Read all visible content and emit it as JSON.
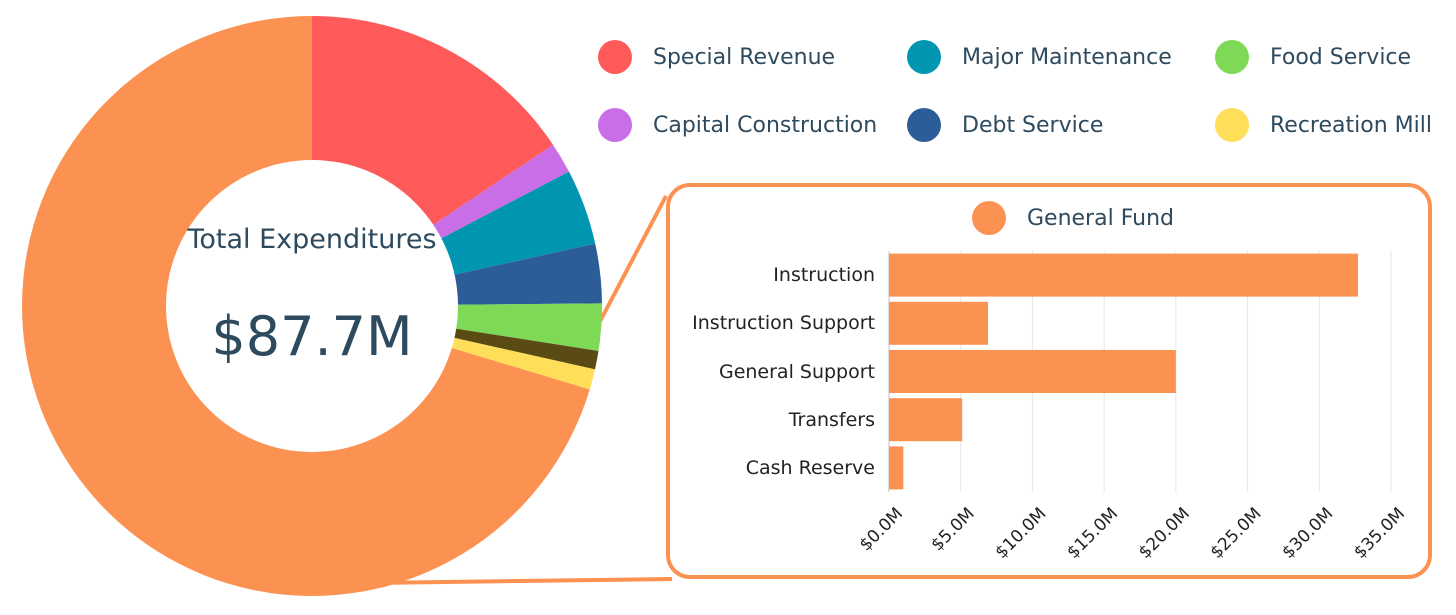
{
  "colors": {
    "general_fund": "#fb9251",
    "special_revenue": "#ff5a5a",
    "capital_construction": "#c96ee6",
    "major_maintenance": "#0096b2",
    "debt_service": "#2d5d98",
    "food_service": "#7ed957",
    "other_dark": "#5a4a14",
    "recreation_mill": "#ffde59",
    "text": "#2d4a5f"
  },
  "legend": [
    {
      "label": "Special Revenue",
      "color": "#ff5a5a"
    },
    {
      "label": "Major Maintenance",
      "color": "#0096b2"
    },
    {
      "label": "Food Service",
      "color": "#7ed957"
    },
    {
      "label": "Capital Construction",
      "color": "#c96ee6"
    },
    {
      "label": "Debt Service",
      "color": "#2d5d98"
    },
    {
      "label": "Recreation Mill",
      "color": "#ffde59"
    }
  ],
  "center": {
    "title": "Total Expenditures",
    "total": "$87.7M"
  },
  "inset": {
    "legend_label": "General Fund",
    "legend_color": "#fb9251"
  },
  "chart_data": [
    {
      "type": "pie",
      "style": "donut",
      "center_text": "Total Expenditures $87.7M",
      "slices": [
        {
          "label": "Special Revenue",
          "value": 13.7,
          "color": "#ff5a5a"
        },
        {
          "label": "Capital Construction",
          "value": 1.5,
          "color": "#c96ee6"
        },
        {
          "label": "Major Maintenance",
          "value": 3.7,
          "color": "#0096b2"
        },
        {
          "label": "Debt Service",
          "value": 2.9,
          "color": "#2d5d98"
        },
        {
          "label": "Food Service",
          "value": 2.3,
          "color": "#7ed957"
        },
        {
          "label": "",
          "value": 0.9,
          "color": "#5a4a14"
        },
        {
          "label": "Recreation Mill",
          "value": 1.0,
          "color": "#ffde59"
        },
        {
          "label": "General Fund",
          "value": 61.7,
          "color": "#fb9251"
        }
      ]
    },
    {
      "type": "bar",
      "orientation": "horizontal",
      "series": [
        {
          "name": "General Fund",
          "values": [
            32.7,
            6.9,
            20.0,
            5.1,
            1.0
          ]
        }
      ],
      "categories": [
        "Instruction",
        "Instruction Support",
        "General Support",
        "Transfers",
        "Cash Reserve"
      ],
      "xlim": [
        0,
        35
      ],
      "xticks": [
        0,
        5,
        10,
        15,
        20,
        25,
        30,
        35
      ],
      "xtick_labels": [
        "$0.0M",
        "$5.0M",
        "$10.0M",
        "$15.0M",
        "$20.0M",
        "$25.0M",
        "$30.0M",
        "$35.0M"
      ],
      "grid": true,
      "legend_placement": "top"
    }
  ]
}
